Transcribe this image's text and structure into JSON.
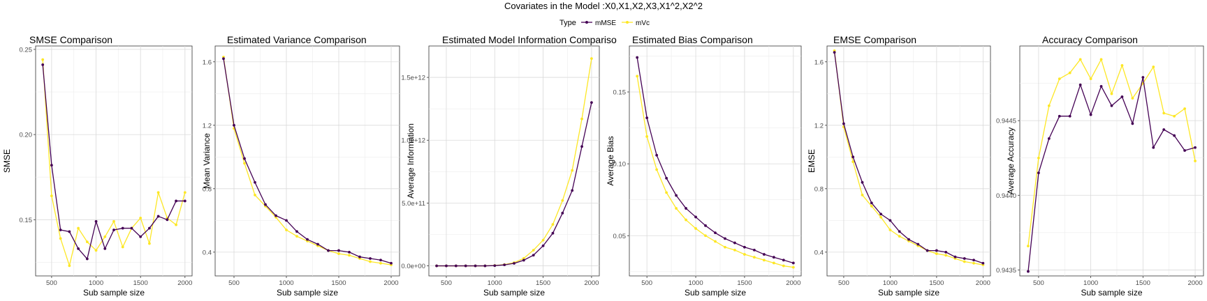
{
  "figure": {
    "title": "Covariates in the Model :X0,X1,X2,X3,X1^2,X2^2",
    "legend": {
      "title": "Type",
      "items": [
        {
          "label": "mMSE",
          "color": "#440154"
        },
        {
          "label": "mVc",
          "color": "#FDE725"
        }
      ]
    }
  },
  "chart_data": [
    {
      "type": "line",
      "title": "SMSE Comparison",
      "xlabel": "Sub sample size",
      "ylabel": "SMSE",
      "xlim": [
        320,
        2080
      ],
      "ylim": [
        0.117,
        0.252
      ],
      "xticks": [
        {
          "v": 500,
          "label": "500"
        },
        {
          "v": 1000,
          "label": "1000"
        },
        {
          "v": 1500,
          "label": "1500"
        },
        {
          "v": 2000,
          "label": "2000"
        }
      ],
      "yticks": [
        {
          "v": 0.15,
          "label": "0.15"
        },
        {
          "v": 0.2,
          "label": "0.20"
        },
        {
          "v": 0.25,
          "label": "0.25"
        }
      ],
      "x": [
        400,
        500,
        600,
        700,
        800,
        900,
        1000,
        1100,
        1200,
        1300,
        1400,
        1500,
        1600,
        1700,
        1800,
        1900,
        2000
      ],
      "series": [
        {
          "name": "mMSE",
          "color": "#440154",
          "values": [
            0.241,
            0.182,
            0.144,
            0.143,
            0.133,
            0.127,
            0.149,
            0.133,
            0.144,
            0.145,
            0.145,
            0.14,
            0.145,
            0.152,
            0.15,
            0.161,
            0.161
          ]
        },
        {
          "name": "mVc",
          "color": "#FDE725",
          "values": [
            0.244,
            0.164,
            0.139,
            0.123,
            0.145,
            0.137,
            0.132,
            0.14,
            0.149,
            0.134,
            0.145,
            0.151,
            0.136,
            0.166,
            0.151,
            0.147,
            0.166
          ]
        }
      ]
    },
    {
      "type": "line",
      "title": "Estimated Variance Comparison",
      "xlabel": "Sub sample size",
      "ylabel": "Mean Variance",
      "xlim": [
        320,
        2080
      ],
      "ylim": [
        0.25,
        1.7
      ],
      "xticks": [
        {
          "v": 500,
          "label": "500"
        },
        {
          "v": 1000,
          "label": "1000"
        },
        {
          "v": 1500,
          "label": "1500"
        },
        {
          "v": 2000,
          "label": "2000"
        }
      ],
      "yticks": [
        {
          "v": 0.4,
          "label": "0.4"
        },
        {
          "v": 0.8,
          "label": "0.8"
        },
        {
          "v": 1.2,
          "label": "1.2"
        },
        {
          "v": 1.6,
          "label": "1.6"
        }
      ],
      "x": [
        400,
        500,
        600,
        700,
        800,
        900,
        1000,
        1100,
        1200,
        1300,
        1400,
        1500,
        1600,
        1700,
        1800,
        1900,
        2000
      ],
      "series": [
        {
          "name": "mMSE",
          "color": "#440154",
          "values": [
            1.62,
            1.2,
            0.99,
            0.84,
            0.7,
            0.63,
            0.6,
            0.53,
            0.48,
            0.45,
            0.41,
            0.41,
            0.4,
            0.37,
            0.36,
            0.35,
            0.33
          ]
        },
        {
          "name": "mVc",
          "color": "#FDE725",
          "values": [
            1.63,
            1.18,
            0.96,
            0.76,
            0.69,
            0.62,
            0.54,
            0.5,
            0.47,
            0.44,
            0.41,
            0.39,
            0.38,
            0.36,
            0.34,
            0.33,
            0.32
          ]
        }
      ]
    },
    {
      "type": "line",
      "title": "Estimated Model Information Compariso",
      "xlabel": "Sub sample size",
      "ylabel": "Average Information",
      "xlim": [
        320,
        2080
      ],
      "ylim": [
        -80000000000.0,
        1750000000000.0
      ],
      "xticks": [
        {
          "v": 500,
          "label": "500"
        },
        {
          "v": 1000,
          "label": "1000"
        },
        {
          "v": 1500,
          "label": "1500"
        },
        {
          "v": 2000,
          "label": "2000"
        }
      ],
      "yticks": [
        {
          "v": 0,
          "label": "0.0e+00"
        },
        {
          "v": 500000000000.0,
          "label": "5.0e+11"
        },
        {
          "v": 1000000000000.0,
          "label": "1.0e+12"
        },
        {
          "v": 1500000000000.0,
          "label": "1.5e+12"
        }
      ],
      "x": [
        400,
        500,
        600,
        700,
        800,
        900,
        1000,
        1100,
        1200,
        1300,
        1400,
        1500,
        1600,
        1700,
        1800,
        1900,
        2000
      ],
      "series": [
        {
          "name": "mMSE",
          "color": "#440154",
          "values": [
            0,
            0,
            0,
            0,
            0,
            0,
            2000000000.0,
            8000000000.0,
            20000000000.0,
            45000000000.0,
            85000000000.0,
            160000000000.0,
            260000000000.0,
            420000000000.0,
            600000000000.0,
            950000000000.0,
            1300000000000.0
          ]
        },
        {
          "name": "mVc",
          "color": "#FDE725",
          "values": [
            0,
            0,
            0,
            0,
            0,
            0,
            3000000000.0,
            10000000000.0,
            25000000000.0,
            60000000000.0,
            125000000000.0,
            205000000000.0,
            330000000000.0,
            520000000000.0,
            760000000000.0,
            1170000000000.0,
            1650000000000.0
          ]
        }
      ]
    },
    {
      "type": "line",
      "title": "Estimated Bias Comparison",
      "xlabel": "Sub sample size",
      "ylabel": "Average Bias",
      "xlim": [
        320,
        2080
      ],
      "ylim": [
        0.022,
        0.182
      ],
      "xticks": [
        {
          "v": 500,
          "label": "500"
        },
        {
          "v": 1000,
          "label": "1000"
        },
        {
          "v": 1500,
          "label": "1500"
        },
        {
          "v": 2000,
          "label": "2000"
        }
      ],
      "yticks": [
        {
          "v": 0.05,
          "label": "0.05"
        },
        {
          "v": 0.1,
          "label": "0.10"
        },
        {
          "v": 0.15,
          "label": "0.15"
        }
      ],
      "x": [
        400,
        500,
        600,
        700,
        800,
        900,
        1000,
        1100,
        1200,
        1300,
        1400,
        1500,
        1600,
        1700,
        1800,
        1900,
        2000
      ],
      "series": [
        {
          "name": "mMSE",
          "color": "#440154",
          "values": [
            0.174,
            0.132,
            0.106,
            0.09,
            0.078,
            0.069,
            0.063,
            0.057,
            0.052,
            0.048,
            0.045,
            0.042,
            0.04,
            0.037,
            0.035,
            0.033,
            0.031
          ]
        },
        {
          "name": "mVc",
          "color": "#FDE725",
          "values": [
            0.161,
            0.119,
            0.096,
            0.08,
            0.069,
            0.061,
            0.055,
            0.05,
            0.046,
            0.042,
            0.04,
            0.037,
            0.035,
            0.033,
            0.031,
            0.029,
            0.028
          ]
        }
      ]
    },
    {
      "type": "line",
      "title": "EMSE Comparison",
      "xlabel": "Sub sample size",
      "ylabel": "EMSE",
      "xlim": [
        320,
        2080
      ],
      "ylim": [
        0.25,
        1.7
      ],
      "xticks": [
        {
          "v": 500,
          "label": "500"
        },
        {
          "v": 1000,
          "label": "1000"
        },
        {
          "v": 1500,
          "label": "1500"
        },
        {
          "v": 2000,
          "label": "2000"
        }
      ],
      "yticks": [
        {
          "v": 0.4,
          "label": "0.4"
        },
        {
          "v": 0.8,
          "label": "0.8"
        },
        {
          "v": 1.2,
          "label": "1.2"
        },
        {
          "v": 1.6,
          "label": "1.6"
        }
      ],
      "x": [
        400,
        500,
        600,
        700,
        800,
        900,
        1000,
        1100,
        1200,
        1300,
        1400,
        1500,
        1600,
        1700,
        1800,
        1900,
        2000
      ],
      "series": [
        {
          "name": "mMSE",
          "color": "#440154",
          "values": [
            1.66,
            1.21,
            1.0,
            0.84,
            0.71,
            0.64,
            0.6,
            0.53,
            0.48,
            0.45,
            0.41,
            0.41,
            0.4,
            0.37,
            0.36,
            0.35,
            0.33
          ]
        },
        {
          "name": "mVc",
          "color": "#FDE725",
          "values": [
            1.67,
            1.19,
            0.97,
            0.76,
            0.69,
            0.62,
            0.54,
            0.5,
            0.47,
            0.44,
            0.41,
            0.39,
            0.38,
            0.36,
            0.34,
            0.33,
            0.32
          ]
        }
      ]
    },
    {
      "type": "line",
      "title": "Accuracy Comparison",
      "xlabel": "Sub sample size",
      "ylabel": "Average Accuracy",
      "xlim": [
        320,
        2080
      ],
      "ylim": [
        0.94346,
        0.945
      ],
      "xticks": [
        {
          "v": 500,
          "label": "500"
        },
        {
          "v": 1000,
          "label": "1000"
        },
        {
          "v": 1500,
          "label": "1500"
        },
        {
          "v": 2000,
          "label": "2000"
        }
      ],
      "yticks": [
        {
          "v": 0.9435,
          "label": "0.9435"
        },
        {
          "v": 0.944,
          "label": "0.9440"
        },
        {
          "v": 0.9445,
          "label": "0.9445"
        }
      ],
      "x": [
        400,
        500,
        600,
        700,
        800,
        900,
        1000,
        1100,
        1200,
        1300,
        1400,
        1500,
        1600,
        1700,
        1800,
        1900,
        2000
      ],
      "series": [
        {
          "name": "mMSE",
          "color": "#440154",
          "values": [
            0.94349,
            0.94415,
            0.94438,
            0.94453,
            0.94453,
            0.94474,
            0.94454,
            0.94473,
            0.9446,
            0.94466,
            0.94448,
            0.94479,
            0.94432,
            0.94444,
            0.9444,
            0.9443,
            0.94432
          ]
        },
        {
          "name": "mVc",
          "color": "#FDE725",
          "values": [
            0.94366,
            0.94425,
            0.9446,
            0.94478,
            0.94482,
            0.94491,
            0.94478,
            0.94491,
            0.94468,
            0.94487,
            0.94465,
            0.94475,
            0.94486,
            0.94455,
            0.94453,
            0.94458,
            0.94423
          ]
        }
      ]
    }
  ]
}
